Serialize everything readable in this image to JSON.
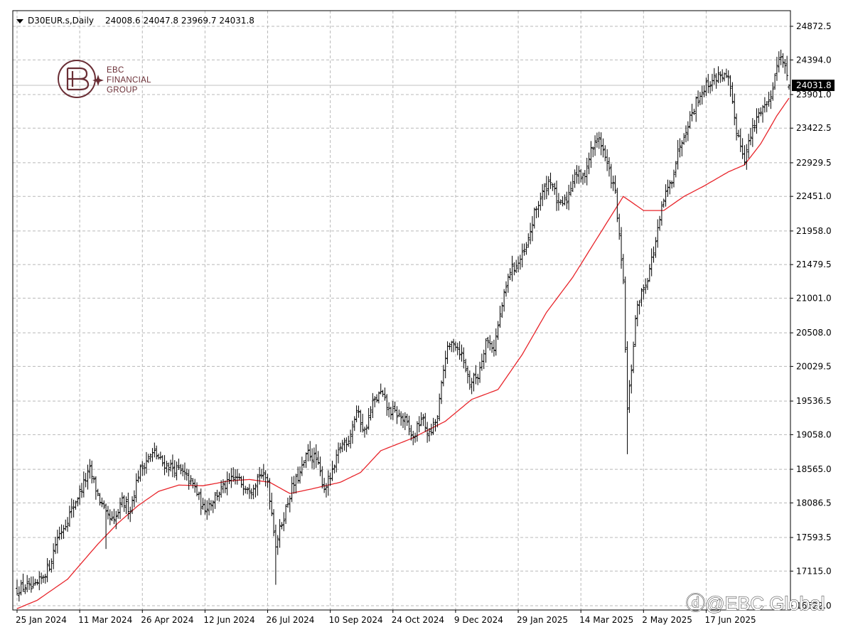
{
  "header": {
    "symbol_label": "D30EUR.s,Daily",
    "ohlc_label": "24008.6 24047.8 23969.7 24031.8"
  },
  "logo": {
    "line1": "EBC",
    "line2": "FINANCIAL",
    "line3": "GROUP"
  },
  "watermark": {
    "text": "@EBC Global"
  },
  "current_price_label": "24031.8",
  "colors": {
    "bars": "#000000",
    "moving_average": "#e8252b",
    "grid": "#b8b8b8",
    "current_price_box": "#000000",
    "logo": "#6a2e35"
  },
  "chart_data": {
    "type": "ohlc",
    "title": "",
    "xlabel": "",
    "ylabel": "",
    "ylim": [
      16500,
      25000
    ],
    "grid": true,
    "y_ticks": [
      "24872.5",
      "24394.0",
      "23901.0",
      "23422.5",
      "22929.5",
      "22451.0",
      "21958.0",
      "21479.5",
      "21001.0",
      "20508.0",
      "20029.5",
      "19536.5",
      "19058.0",
      "18565.0",
      "18086.5",
      "17593.5",
      "17115.0",
      "16622.0"
    ],
    "x_ticks": [
      "25 Jan 2024",
      "11 Mar 2024",
      "26 Apr 2024",
      "12 Jun 2024",
      "26 Jul 2024",
      "10 Sep 2024",
      "24 Oct 2024",
      "9 Dec 2024",
      "29 Jan 2025",
      "14 Mar 2025",
      "2 May 2025",
      "17 Jun 2025"
    ],
    "x_tick_index": [
      0,
      31,
      62,
      93,
      124,
      155,
      186,
      217,
      248,
      279,
      310,
      341
    ],
    "current_price": 24031.8,
    "close_anchors": [
      [
        0,
        16850
      ],
      [
        4,
        16900
      ],
      [
        8,
        16850
      ],
      [
        12,
        17000
      ],
      [
        16,
        17200
      ],
      [
        20,
        17600
      ],
      [
        24,
        17800
      ],
      [
        28,
        18050
      ],
      [
        32,
        18300
      ],
      [
        36,
        18550
      ],
      [
        40,
        18200
      ],
      [
        44,
        17900
      ],
      [
        48,
        17800
      ],
      [
        52,
        18100
      ],
      [
        56,
        18000
      ],
      [
        60,
        18500
      ],
      [
        64,
        18700
      ],
      [
        68,
        18800
      ],
      [
        72,
        18650
      ],
      [
        76,
        18600
      ],
      [
        80,
        18550
      ],
      [
        84,
        18450
      ],
      [
        88,
        18300
      ],
      [
        92,
        18000
      ],
      [
        96,
        18100
      ],
      [
        100,
        18250
      ],
      [
        104,
        18350
      ],
      [
        108,
        18450
      ],
      [
        112,
        18350
      ],
      [
        116,
        18300
      ],
      [
        120,
        18500
      ],
      [
        124,
        18400
      ],
      [
        128,
        17500
      ],
      [
        132,
        17900
      ],
      [
        136,
        18300
      ],
      [
        140,
        18500
      ],
      [
        144,
        18800
      ],
      [
        148,
        18700
      ],
      [
        152,
        18300
      ],
      [
        156,
        18500
      ],
      [
        160,
        18900
      ],
      [
        164,
        19000
      ],
      [
        168,
        19400
      ],
      [
        172,
        19100
      ],
      [
        176,
        19500
      ],
      [
        180,
        19650
      ],
      [
        184,
        19400
      ],
      [
        188,
        19350
      ],
      [
        192,
        19250
      ],
      [
        196,
        19000
      ],
      [
        200,
        19300
      ],
      [
        204,
        19050
      ],
      [
        208,
        19300
      ],
      [
        212,
        20200
      ],
      [
        216,
        20400
      ],
      [
        220,
        20200
      ],
      [
        224,
        19800
      ],
      [
        228,
        19900
      ],
      [
        232,
        20400
      ],
      [
        236,
        20300
      ],
      [
        240,
        20900
      ],
      [
        244,
        21400
      ],
      [
        248,
        21500
      ],
      [
        252,
        21700
      ],
      [
        256,
        22200
      ],
      [
        260,
        22500
      ],
      [
        264,
        22700
      ],
      [
        268,
        22300
      ],
      [
        272,
        22400
      ],
      [
        276,
        22800
      ],
      [
        280,
        22700
      ],
      [
        284,
        23100
      ],
      [
        288,
        23300
      ],
      [
        292,
        22900
      ],
      [
        296,
        22500
      ],
      [
        300,
        21200
      ],
      [
        302,
        19400
      ],
      [
        304,
        20000
      ],
      [
        306,
        20700
      ],
      [
        308,
        21000
      ],
      [
        312,
        21300
      ],
      [
        316,
        21800
      ],
      [
        320,
        22400
      ],
      [
        324,
        22700
      ],
      [
        328,
        23200
      ],
      [
        332,
        23500
      ],
      [
        336,
        23800
      ],
      [
        340,
        24000
      ],
      [
        344,
        24100
      ],
      [
        348,
        24200
      ],
      [
        352,
        24100
      ],
      [
        356,
        23400
      ],
      [
        360,
        23000
      ],
      [
        364,
        23400
      ],
      [
        368,
        23700
      ],
      [
        372,
        23800
      ],
      [
        376,
        24300
      ],
      [
        378,
        24500
      ],
      [
        380,
        24250
      ],
      [
        382,
        24031.8
      ]
    ],
    "moving_average_anchors": [
      [
        0,
        16580
      ],
      [
        10,
        16700
      ],
      [
        25,
        17000
      ],
      [
        40,
        17500
      ],
      [
        50,
        17800
      ],
      [
        60,
        18050
      ],
      [
        70,
        18250
      ],
      [
        80,
        18340
      ],
      [
        92,
        18330
      ],
      [
        105,
        18400
      ],
      [
        115,
        18420
      ],
      [
        125,
        18380
      ],
      [
        135,
        18220
      ],
      [
        145,
        18280
      ],
      [
        160,
        18380
      ],
      [
        170,
        18520
      ],
      [
        180,
        18830
      ],
      [
        195,
        19000
      ],
      [
        212,
        19250
      ],
      [
        225,
        19560
      ],
      [
        238,
        19700
      ],
      [
        250,
        20200
      ],
      [
        262,
        20800
      ],
      [
        275,
        21300
      ],
      [
        288,
        21900
      ],
      [
        300,
        22450
      ],
      [
        310,
        22250
      ],
      [
        320,
        22250
      ],
      [
        330,
        22450
      ],
      [
        340,
        22600
      ],
      [
        352,
        22800
      ],
      [
        360,
        22900
      ],
      [
        368,
        23200
      ],
      [
        376,
        23600
      ],
      [
        382,
        23850
      ]
    ]
  }
}
